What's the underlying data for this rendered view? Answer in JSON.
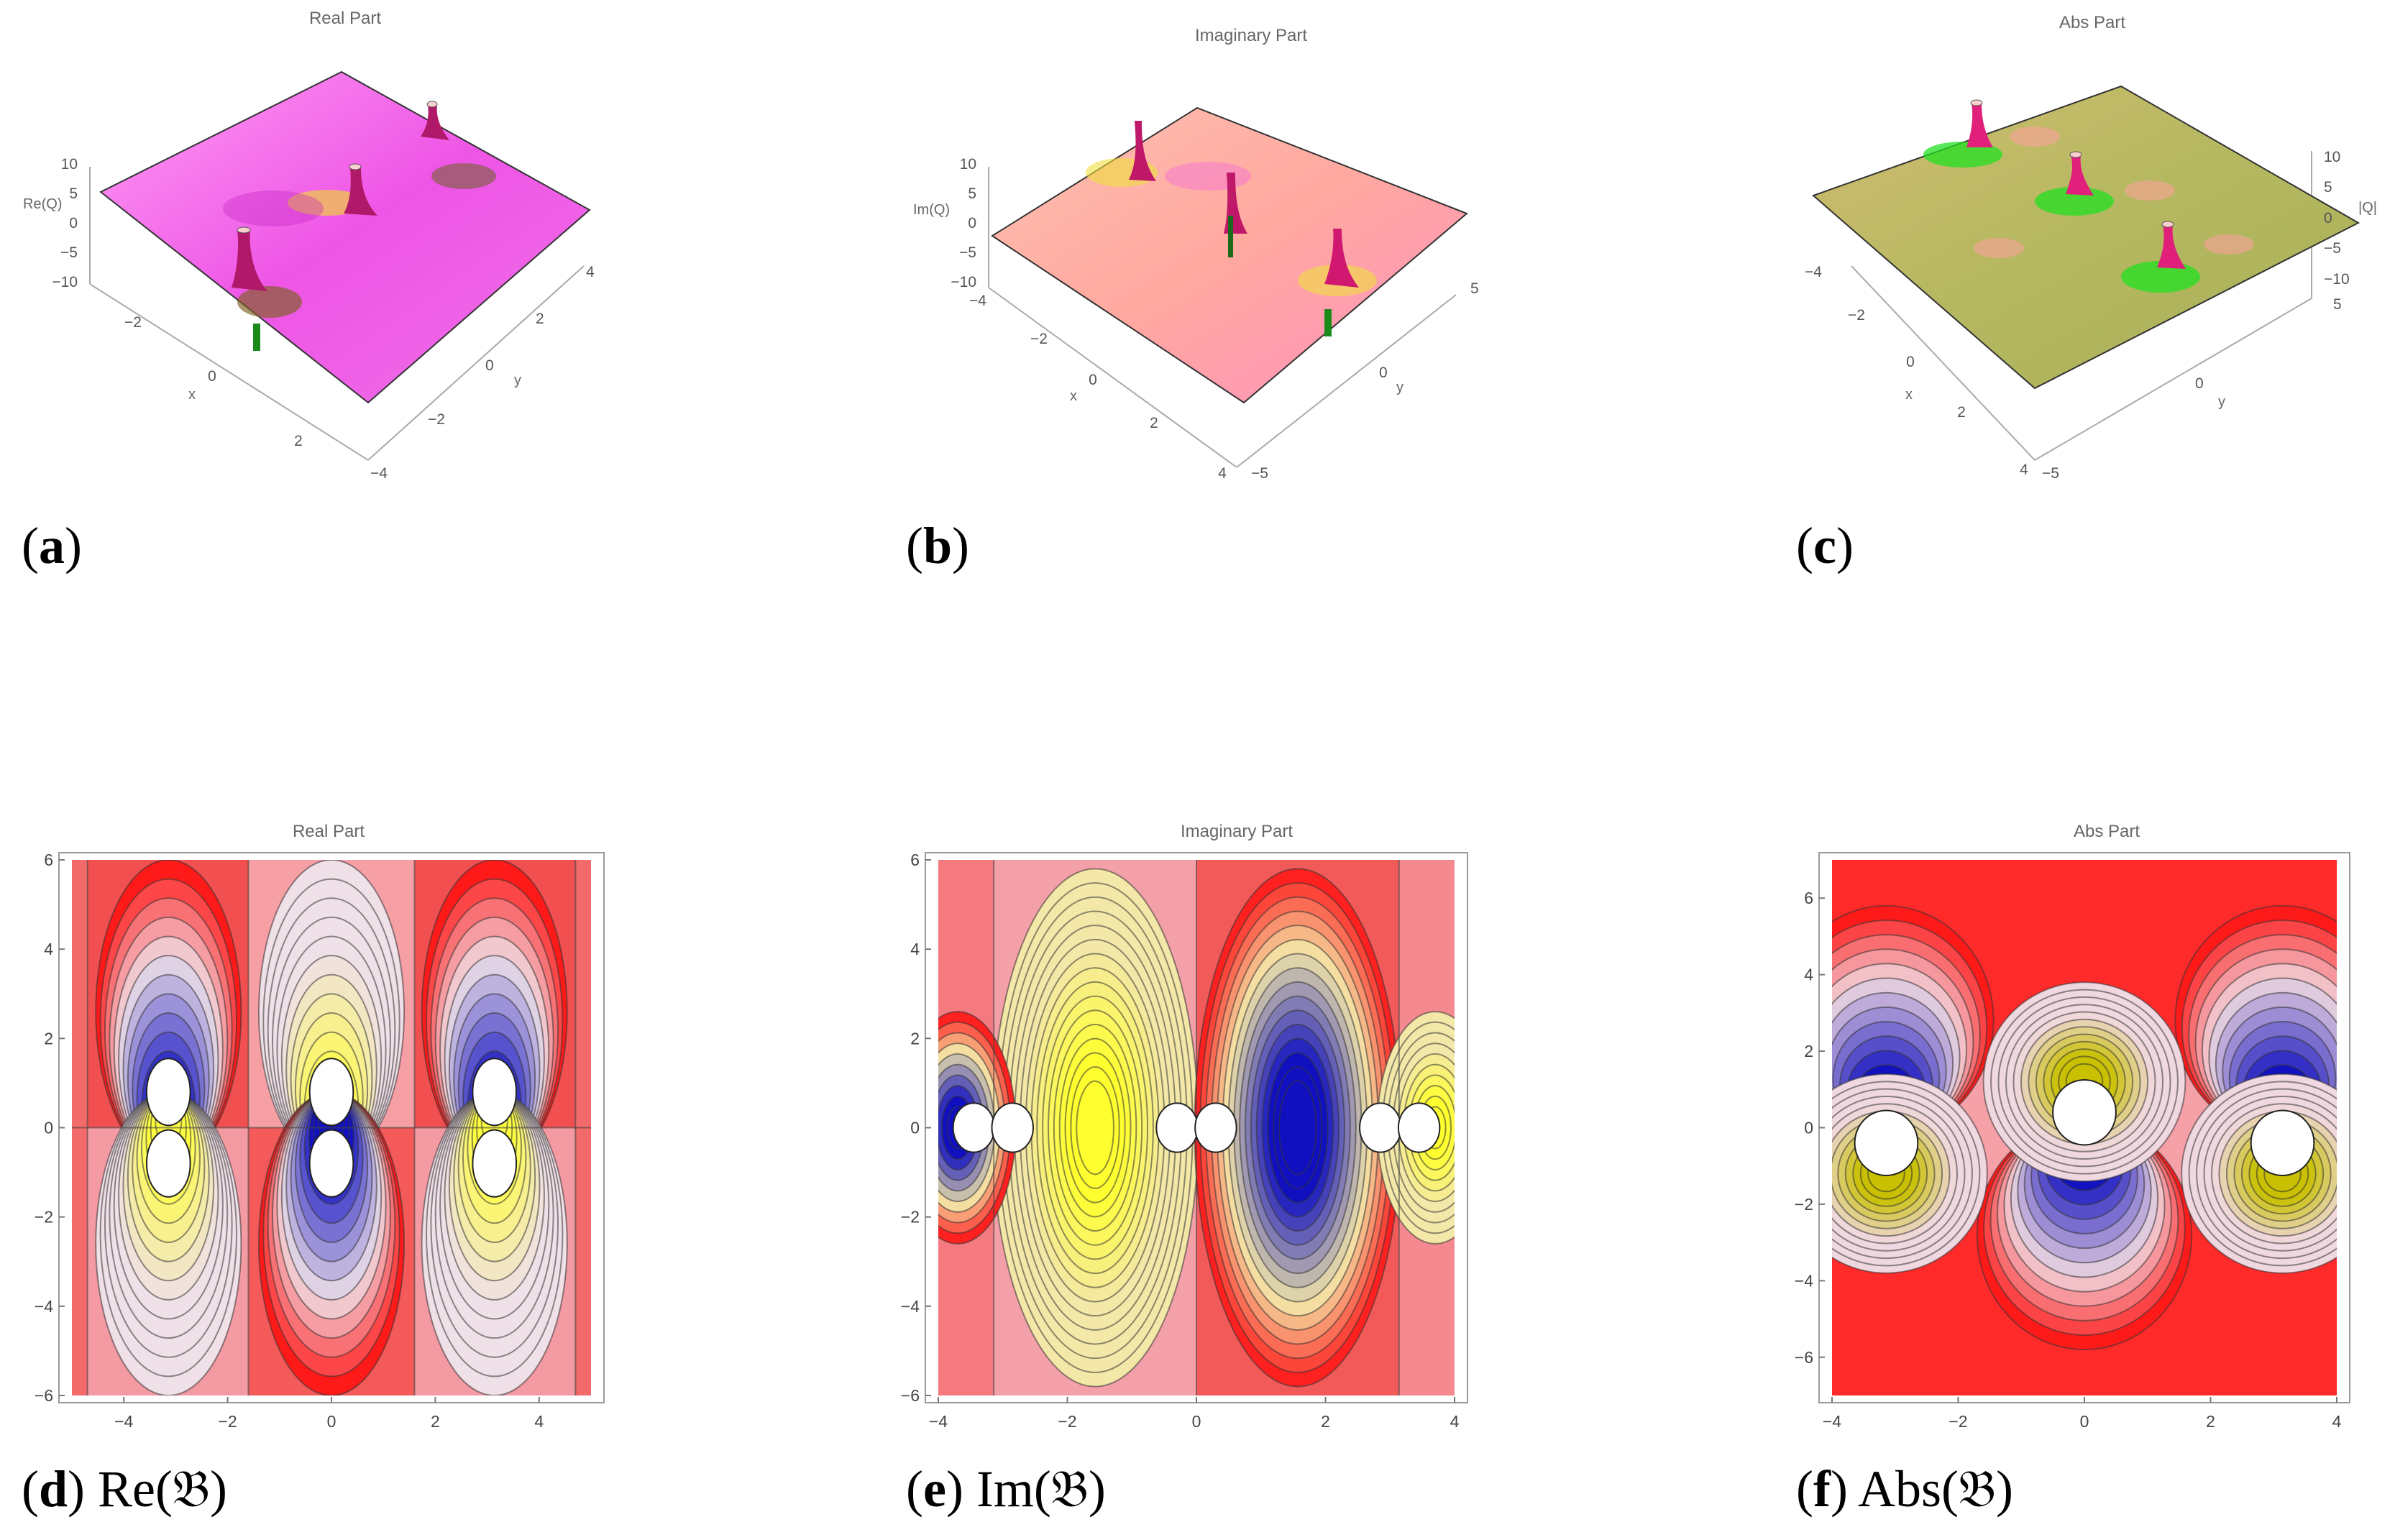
{
  "chart_data": [
    {
      "type": "surface3d",
      "title": "Real Part",
      "xlabel": "x",
      "ylabel": "y",
      "zlabel": "Re(Q)",
      "x_ticks": [
        "−2",
        "0",
        "2"
      ],
      "y_ticks": [
        "−4",
        "−2",
        "0",
        "2",
        "4"
      ],
      "z_ticks": [
        "10",
        "5",
        "0",
        "−5",
        "−10"
      ],
      "caption": {
        "letter": "a",
        "text": ""
      },
      "colors": {
        "surface": "#ee55e6",
        "surface_light": "#ff9cf4",
        "spike": "#d4145a",
        "accent": "#c8a400",
        "stem": "#1a8a1a"
      }
    },
    {
      "type": "surface3d",
      "title": "Imaginary Part",
      "xlabel": "x",
      "ylabel": "y",
      "zlabel": "Im(Q)",
      "x_ticks": [
        "−4",
        "−2",
        "0",
        "2",
        "4"
      ],
      "y_ticks": [
        "−5",
        "0",
        "5"
      ],
      "z_ticks": [
        "10",
        "5",
        "0",
        "−5",
        "−10"
      ],
      "caption": {
        "letter": "b",
        "text": ""
      },
      "colors": {
        "surface": "#ffa8a0",
        "surface_light": "#ffc8b8",
        "spike": "#e8205a",
        "accent": "#f0e040",
        "stem": "#1a8a1a"
      }
    },
    {
      "type": "surface3d",
      "title": "Abs Part",
      "xlabel": "x",
      "ylabel": "y",
      "zlabel": "|Q|",
      "x_ticks": [
        "−4",
        "−2",
        "0",
        "2",
        "4"
      ],
      "y_ticks": [
        "−5",
        "0",
        "5"
      ],
      "z_ticks": [
        "10",
        "5",
        "0",
        "−5",
        "−10"
      ],
      "caption": {
        "letter": "c",
        "text": ""
      },
      "colors": {
        "surface": "#b5b860",
        "surface_light": "#d8c07c",
        "spike": "#e0207a",
        "accent": "#22e022",
        "stem": "#f0a0a0"
      }
    },
    {
      "type": "contour",
      "title": "Real Part",
      "xlim": [
        -5,
        5
      ],
      "ylim": [
        -6,
        6
      ],
      "x_ticks": [
        "−4",
        "−2",
        "0",
        "2",
        "4"
      ],
      "y_ticks": [
        "6",
        "4",
        "2",
        "0",
        "−2",
        "−4",
        "−6"
      ],
      "caption": {
        "letter": "d",
        "text": " Re(𝔅)"
      },
      "colors": {
        "background": "#f26a6a",
        "positive": "#ff1a1a",
        "deep": "#1010c0",
        "negative": "#ffff40",
        "light": "#f0e0e8",
        "hole": "#ffffff"
      }
    },
    {
      "type": "contour",
      "title": "Imaginary Part",
      "xlim": [
        -4,
        4
      ],
      "ylim": [
        -6,
        6
      ],
      "x_ticks": [
        "−4",
        "−2",
        "0",
        "2",
        "4"
      ],
      "y_ticks": [
        "6",
        "4",
        "2",
        "0",
        "−2",
        "−4",
        "−6"
      ],
      "caption": {
        "letter": "e",
        "text": " Im(𝔅)"
      },
      "colors": {
        "background": "#f48080",
        "positive": "#ff2020",
        "deep": "#1010c0",
        "negative": "#ffff30",
        "light": "#f4e8a8",
        "hole": "#ffffff"
      }
    },
    {
      "type": "contour",
      "title": "Abs Part",
      "xlim": [
        -4,
        4
      ],
      "ylim": [
        -7,
        7
      ],
      "x_ticks": [
        "−4",
        "−2",
        "0",
        "2",
        "4"
      ],
      "y_ticks": [
        "6",
        "4",
        "2",
        "0",
        "−2",
        "−4",
        "−6"
      ],
      "caption": {
        "letter": "f",
        "text": " Abs(𝔅)"
      },
      "colors": {
        "background": "#ff2a2a",
        "positive": "#ff1a1a",
        "deep": "#1010c0",
        "negative": "#c8c000",
        "light": "#f0d8e0",
        "hole": "#ffffff"
      }
    }
  ]
}
